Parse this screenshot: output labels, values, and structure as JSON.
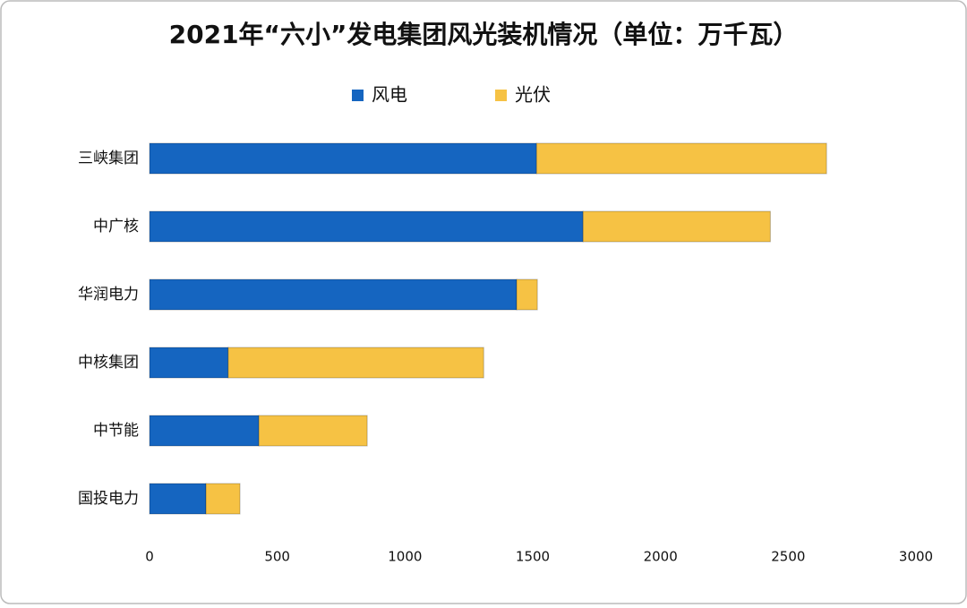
{
  "chart_data": {
    "type": "stacked-bar-horizontal",
    "title": "2021年“六小”发电集团风光装机情况（单位：万千瓦）",
    "categories": [
      "三峡集团",
      "中广核",
      "华润电力",
      "中核集团",
      "中节能",
      "国投电力"
    ],
    "series": [
      {
        "name": "风电",
        "color": "#1565c0",
        "values": [
          1515,
          1697,
          1437,
          308,
          428,
          221
        ]
      },
      {
        "name": "光伏",
        "color": "#f6c244",
        "values": [
          1135,
          733,
          81,
          1000,
          424,
          133
        ]
      }
    ],
    "xlim": [
      0,
      3000
    ],
    "xticks": [
      0,
      500,
      1000,
      1500,
      2000,
      2500,
      3000
    ],
    "legend": "top",
    "grid": false
  }
}
